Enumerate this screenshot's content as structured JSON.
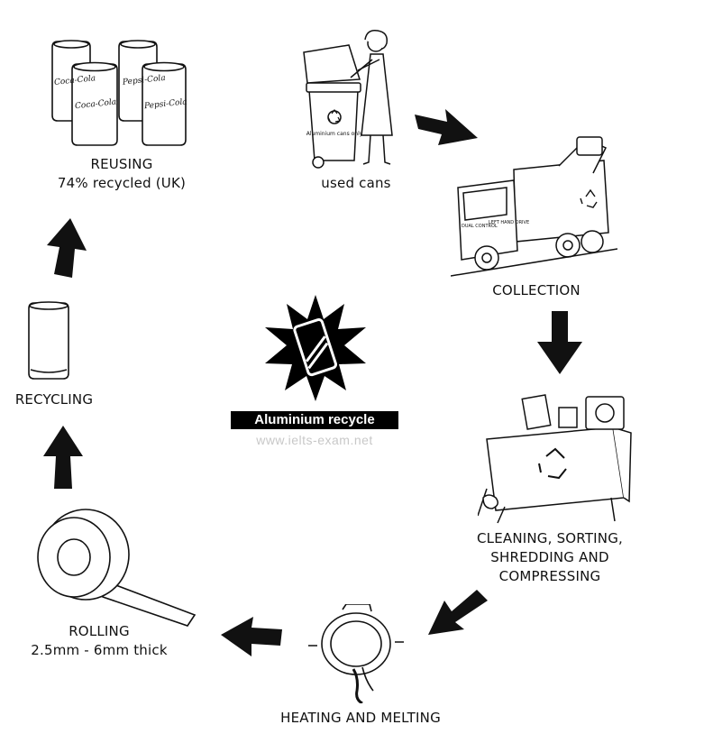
{
  "center": {
    "title": "Aluminium recycle",
    "watermark": "www.ielts-exam.net"
  },
  "stages": {
    "used_cans": {
      "label": "used cans",
      "bin_text": "Aluminium cans only"
    },
    "collection": {
      "label": "COLLECTION",
      "truck_text_1": "DUAL CONTROL",
      "truck_text_2": "LEFT HAND DRIVE"
    },
    "cleaning": {
      "line1": "CLEANING, SORTING,",
      "line2": "SHREDDING AND",
      "line3": "COMPRESSING"
    },
    "heating": {
      "label": "HEATING AND MELTING"
    },
    "rolling": {
      "line1": "ROLLING",
      "line2": "2.5mm - 6mm thick"
    },
    "recycling": {
      "label": "RECYCLING"
    },
    "reusing": {
      "line1": "REUSING",
      "line2": "74% recycled (UK)"
    }
  },
  "cans": {
    "brand_1": "Coca-Cola",
    "brand_2": "Pepsi-Cola",
    "brand_3": "Coca-Cola",
    "brand_4": "Pepsi-Cola"
  },
  "icons": [
    "aluminium-can-icon",
    "recycle-symbol-icon",
    "arrow-icon",
    "truck-icon",
    "wheelie-bin-icon",
    "furnace-icon",
    "sheet-roll-icon"
  ]
}
